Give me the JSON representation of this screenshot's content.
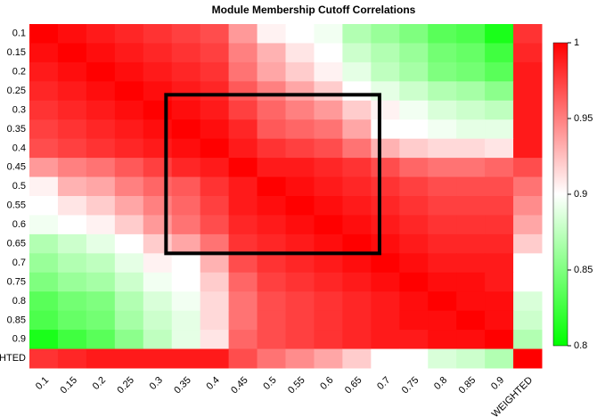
{
  "chart_data": {
    "type": "heatmap",
    "title": "Module Membership Cutoff Correlations",
    "x": [
      "0.1",
      "0.15",
      "0.2",
      "0.25",
      "0.3",
      "0.35",
      "0.4",
      "0.45",
      "0.5",
      "0.55",
      "0.6",
      "0.65",
      "0.7",
      "0.75",
      "0.8",
      "0.85",
      "0.9",
      "WEIGHTED"
    ],
    "y": [
      "0.1",
      "0.15",
      "0.2",
      "0.25",
      "0.3",
      "0.35",
      "0.4",
      "0.45",
      "0.5",
      "0.55",
      "0.6",
      "0.65",
      "0.7",
      "0.75",
      "0.8",
      "0.85",
      "0.9",
      "WEIGHTED"
    ],
    "z": [
      [
        1,
        0.995,
        0.99,
        0.985,
        0.98,
        0.975,
        0.97,
        0.94,
        0.905,
        0.9,
        0.895,
        0.87,
        0.86,
        0.85,
        0.835,
        0.83,
        0.81,
        0.98
      ],
      [
        0.995,
        1,
        0.995,
        0.99,
        0.985,
        0.98,
        0.975,
        0.95,
        0.93,
        0.91,
        0.9,
        0.88,
        0.87,
        0.86,
        0.845,
        0.84,
        0.825,
        0.985
      ],
      [
        0.99,
        0.995,
        1,
        0.995,
        0.99,
        0.985,
        0.98,
        0.955,
        0.935,
        0.92,
        0.905,
        0.89,
        0.875,
        0.865,
        0.85,
        0.845,
        0.835,
        0.99
      ],
      [
        0.985,
        0.99,
        0.995,
        1,
        0.995,
        0.99,
        0.985,
        0.965,
        0.95,
        0.935,
        0.92,
        0.9,
        0.89,
        0.88,
        0.87,
        0.865,
        0.855,
        0.99
      ],
      [
        0.98,
        0.985,
        0.99,
        0.995,
        1,
        0.995,
        0.99,
        0.975,
        0.96,
        0.95,
        0.94,
        0.92,
        0.905,
        0.895,
        0.885,
        0.88,
        0.875,
        0.99
      ],
      [
        0.975,
        0.98,
        0.985,
        0.99,
        0.995,
        1,
        0.995,
        0.985,
        0.965,
        0.96,
        0.955,
        0.935,
        0.9,
        0.9,
        0.895,
        0.89,
        0.89,
        0.99
      ],
      [
        0.97,
        0.975,
        0.98,
        0.985,
        0.99,
        0.995,
        1,
        0.99,
        0.98,
        0.975,
        0.97,
        0.955,
        0.93,
        0.92,
        0.915,
        0.915,
        0.91,
        0.99
      ],
      [
        0.94,
        0.95,
        0.955,
        0.965,
        0.975,
        0.985,
        0.99,
        1,
        0.99,
        0.99,
        0.985,
        0.98,
        0.97,
        0.96,
        0.955,
        0.955,
        0.96,
        0.97
      ],
      [
        0.905,
        0.93,
        0.935,
        0.95,
        0.96,
        0.965,
        0.98,
        0.99,
        1,
        0.995,
        0.99,
        0.985,
        0.98,
        0.975,
        0.97,
        0.97,
        0.97,
        0.955
      ],
      [
        0.9,
        0.91,
        0.92,
        0.935,
        0.95,
        0.96,
        0.975,
        0.99,
        0.995,
        1,
        0.995,
        0.99,
        0.985,
        0.98,
        0.975,
        0.975,
        0.975,
        0.945
      ],
      [
        0.895,
        0.9,
        0.905,
        0.92,
        0.94,
        0.955,
        0.97,
        0.985,
        0.99,
        0.995,
        1,
        0.995,
        0.99,
        0.985,
        0.98,
        0.98,
        0.98,
        0.935
      ],
      [
        0.87,
        0.88,
        0.89,
        0.9,
        0.92,
        0.935,
        0.955,
        0.98,
        0.985,
        0.99,
        0.995,
        1,
        0.995,
        0.99,
        0.985,
        0.985,
        0.985,
        0.92
      ],
      [
        0.86,
        0.87,
        0.875,
        0.89,
        0.905,
        0.9,
        0.93,
        0.97,
        0.98,
        0.985,
        0.99,
        0.995,
        1,
        0.995,
        0.99,
        0.99,
        0.99,
        0.9
      ],
      [
        0.85,
        0.86,
        0.865,
        0.88,
        0.895,
        0.9,
        0.92,
        0.96,
        0.975,
        0.98,
        0.985,
        0.99,
        0.995,
        1,
        0.995,
        0.995,
        0.99,
        0.9
      ],
      [
        0.835,
        0.845,
        0.85,
        0.87,
        0.885,
        0.895,
        0.915,
        0.955,
        0.97,
        0.975,
        0.98,
        0.985,
        0.99,
        0.995,
        1,
        0.995,
        0.995,
        0.885
      ],
      [
        0.83,
        0.84,
        0.845,
        0.865,
        0.88,
        0.89,
        0.915,
        0.955,
        0.97,
        0.975,
        0.98,
        0.985,
        0.99,
        0.995,
        0.995,
        1,
        0.995,
        0.88
      ],
      [
        0.81,
        0.825,
        0.835,
        0.855,
        0.875,
        0.89,
        0.91,
        0.96,
        0.97,
        0.975,
        0.98,
        0.985,
        0.99,
        0.99,
        0.995,
        0.995,
        1,
        0.87
      ],
      [
        0.98,
        0.985,
        0.99,
        0.99,
        0.99,
        0.99,
        0.99,
        0.97,
        0.955,
        0.945,
        0.935,
        0.92,
        0.9,
        0.9,
        0.885,
        0.88,
        0.87,
        1
      ]
    ],
    "colorscale": [
      [
        0.8,
        "#00ff00"
      ],
      [
        0.9,
        "#ffffff"
      ],
      [
        1,
        "#ff0000"
      ]
    ],
    "zlim": [
      0.8,
      1
    ],
    "zticks": [
      0.8,
      0.85,
      0.9,
      0.95,
      1
    ],
    "highlight": {
      "x0": "0.3",
      "x1": "0.65",
      "y0": "0.3",
      "y1": "0.65",
      "color": "#000000"
    }
  }
}
